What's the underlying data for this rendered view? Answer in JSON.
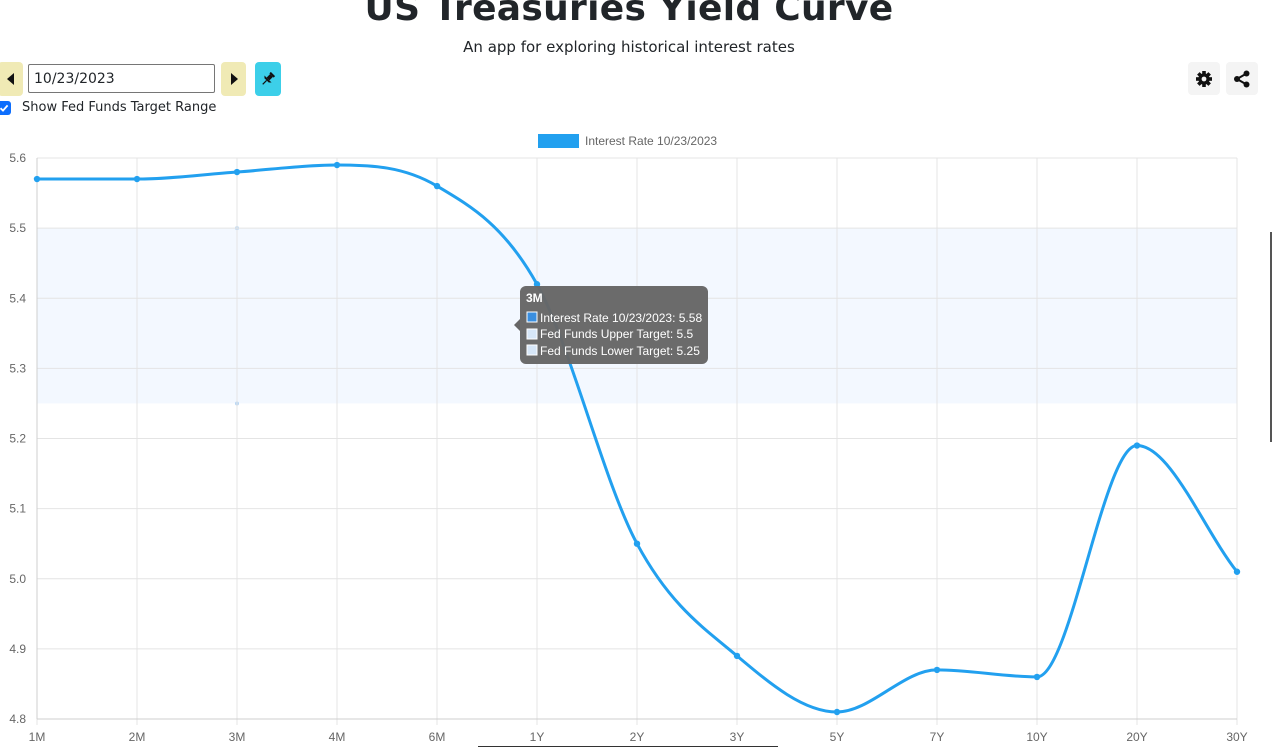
{
  "header": {
    "title": "US Treasuries Yield Curve",
    "subtitle": "An app for exploring historical interest rates"
  },
  "controls": {
    "date_value": "10/23/2023",
    "prev_icon": "caret-left-icon",
    "next_icon": "caret-right-icon",
    "pin_icon": "pin-icon",
    "settings_icon": "gear-icon",
    "share_icon": "share-icon",
    "fed_checkbox_label": "Show Fed Funds Target Range",
    "fed_checkbox_checked": true
  },
  "colors": {
    "line": "#22a0ef",
    "band": "#f3f8ff",
    "tooltip_bg": "#666666",
    "nav_button": "#f0eab5",
    "pin_button": "#3ccfe9",
    "checkbox": "#0d6efd"
  },
  "tooltip": {
    "title": "3M",
    "lines": [
      "Interest Rate 10/23/2023: 5.58",
      "Fed Funds Upper Target: 5.5",
      "Fed Funds Lower Target: 5.25"
    ]
  },
  "chart_data": {
    "type": "line",
    "categories": [
      "1M",
      "2M",
      "3M",
      "4M",
      "6M",
      "1Y",
      "2Y",
      "3Y",
      "5Y",
      "7Y",
      "10Y",
      "20Y",
      "30Y"
    ],
    "series": [
      {
        "name": "Interest Rate 10/23/2023",
        "values": [
          5.57,
          5.57,
          5.58,
          5.59,
          5.56,
          5.42,
          5.05,
          4.89,
          4.81,
          4.87,
          4.86,
          5.19,
          5.01
        ]
      }
    ],
    "fed_funds_target": {
      "upper": 5.5,
      "lower": 5.25
    },
    "ylim": [
      4.8,
      5.6
    ],
    "yticks": [
      "4.8",
      "4.9",
      "5.0",
      "5.1",
      "5.2",
      "5.3",
      "5.4",
      "5.5",
      "5.6"
    ],
    "legend_position": "top",
    "grid": true
  }
}
